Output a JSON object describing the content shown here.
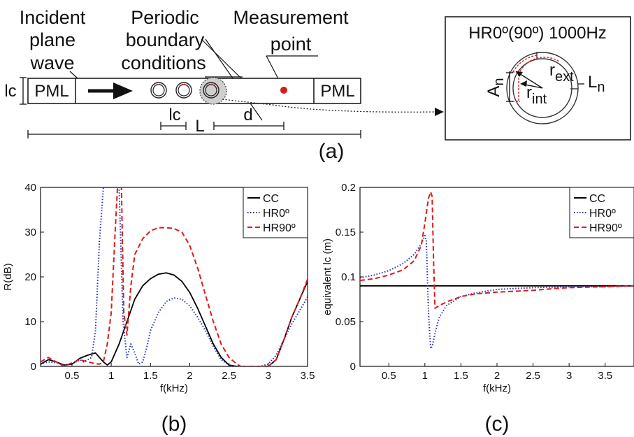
{
  "schematic": {
    "incident_wave": [
      "Incident",
      "plane",
      "wave"
    ],
    "periodic_bc": [
      "Periodic",
      "boundary",
      "conditions"
    ],
    "measurement": [
      "Measurement",
      "point"
    ],
    "pml_left": "PML",
    "pml_right": "PML",
    "lc_side": "lc",
    "lc_dim": "lc",
    "L": "L",
    "d": "d",
    "inset_title": "HR0º(90º) 1000Hz",
    "r_ext_base": "r",
    "r_ext_sub": "ext",
    "r_int_base": "r",
    "r_int_sub": "int",
    "A_base": "A",
    "A_sub": "n",
    "L_base": "L",
    "L_sub": "n",
    "panel_label": "(a)"
  },
  "chart_data": [
    {
      "type": "line",
      "panel_label": "(b)",
      "xlabel": "f(kHz)",
      "ylabel": "R(dB)",
      "xlim": [
        0.1,
        3.5
      ],
      "ylim": [
        0,
        40
      ],
      "xticks": [
        0.5,
        1,
        1.5,
        2,
        2.5,
        3,
        3.5
      ],
      "xtick_labels": [
        "0.5",
        "1",
        "1.5",
        "2",
        "2.5",
        "3",
        "3.5"
      ],
      "yticks": [
        0,
        10,
        20,
        30,
        40
      ],
      "ytick_labels": [
        "0",
        "10",
        "20",
        "30",
        "40"
      ],
      "legend_position": "top-right",
      "series": [
        {
          "name": "CC",
          "color": "#000000",
          "dash": "solid",
          "x": [
            0.1,
            0.2,
            0.3,
            0.4,
            0.5,
            0.6,
            0.7,
            0.8,
            0.9,
            0.95,
            1.0,
            1.1,
            1.2,
            1.3,
            1.4,
            1.5,
            1.6,
            1.7,
            1.8,
            1.9,
            2.0,
            2.1,
            2.2,
            2.3,
            2.4,
            2.5,
            2.6,
            2.7,
            2.8,
            2.9,
            3.0,
            3.1,
            3.2,
            3.3,
            3.4,
            3.5
          ],
          "y": [
            0.5,
            1.5,
            1.0,
            0.3,
            0.5,
            1.8,
            2.5,
            3.0,
            1.0,
            0.3,
            1.0,
            5.0,
            10.0,
            15.0,
            18.0,
            19.6,
            20.6,
            20.9,
            20.4,
            19.0,
            16.5,
            13.0,
            9.0,
            5.0,
            2.0,
            0.3,
            0.0,
            0.0,
            0.0,
            0.0,
            0.0,
            1.5,
            6.0,
            11.0,
            15.0,
            19.0
          ]
        },
        {
          "name": "HR0º",
          "color": "#1f2fb8",
          "dash": "dotted",
          "x": [
            0.1,
            0.2,
            0.3,
            0.4,
            0.5,
            0.6,
            0.65,
            0.75,
            0.8,
            0.85,
            0.9,
            0.95,
            0.97,
            1.0,
            1.1,
            1.15,
            1.2,
            1.25,
            1.3,
            1.35,
            1.4,
            1.45,
            1.5,
            1.6,
            1.7,
            1.8,
            1.9,
            2.0,
            2.1,
            2.2,
            2.3,
            2.4,
            2.5,
            2.6,
            2.7,
            2.8,
            2.9,
            3.0,
            3.1,
            3.2,
            3.3,
            3.4,
            3.5
          ],
          "y": [
            0.5,
            1.0,
            0.8,
            0.3,
            0.5,
            1.5,
            1.0,
            2.0,
            8.0,
            28.0,
            40.0,
            40.0,
            40.0,
            40.0,
            40.0,
            10.0,
            2.0,
            5.0,
            3.0,
            0.5,
            1.0,
            4.0,
            8.0,
            12.0,
            14.5,
            15.3,
            15.0,
            13.5,
            11.0,
            8.0,
            4.5,
            1.5,
            0.2,
            0.0,
            0.0,
            0.0,
            0.0,
            0.5,
            2.5,
            6.0,
            9.5,
            12.5,
            15.5
          ]
        },
        {
          "name": "HR90º",
          "color": "#dd1a1a",
          "dash": "dashed",
          "x": [
            0.1,
            0.2,
            0.3,
            0.4,
            0.5,
            0.6,
            0.7,
            0.8,
            0.85,
            0.9,
            0.95,
            1.0,
            1.05,
            1.08,
            1.1,
            1.13,
            1.16,
            1.2,
            1.25,
            1.3,
            1.4,
            1.5,
            1.6,
            1.7,
            1.8,
            1.9,
            2.0,
            2.1,
            2.2,
            2.3,
            2.4,
            2.5,
            2.6,
            2.65,
            2.7,
            2.8,
            2.9,
            3.0,
            3.1,
            3.2,
            3.3,
            3.4,
            3.5
          ],
          "y": [
            1.0,
            2.0,
            1.0,
            0.0,
            0.8,
            1.5,
            1.0,
            0.6,
            0.5,
            1.0,
            5.0,
            12.0,
            30.0,
            40.0,
            40.0,
            40.0,
            12.0,
            7.0,
            18.0,
            25.0,
            28.5,
            30.3,
            31.0,
            31.0,
            30.8,
            30.0,
            27.0,
            22.0,
            16.0,
            10.0,
            5.0,
            2.0,
            0.5,
            0.0,
            0.0,
            0.0,
            0.0,
            0.0,
            1.5,
            6.0,
            11.0,
            15.0,
            19.5
          ]
        }
      ]
    },
    {
      "type": "line",
      "panel_label": "(c)",
      "xlabel": "f(kHz)",
      "ylabel": "equivalent lc (m)",
      "xlim": [
        0.1,
        3.9
      ],
      "ylim": [
        0,
        0.2
      ],
      "xticks": [
        0.5,
        1,
        1.5,
        2,
        2.5,
        3,
        3.5
      ],
      "xtick_labels": [
        "0.5",
        "1",
        "1.5",
        "2",
        "2.5",
        "3",
        "3.5"
      ],
      "yticks": [
        0,
        0.05,
        0.1,
        0.15,
        0.2
      ],
      "ytick_labels": [
        "0",
        "0.05",
        "0.1",
        "0.15",
        "0.2"
      ],
      "legend_position": "top-right",
      "series": [
        {
          "name": "CC",
          "color": "#000000",
          "dash": "solid",
          "x": [
            0.1,
            3.9
          ],
          "y": [
            0.09,
            0.09
          ]
        },
        {
          "name": "HR0º",
          "color": "#1f2fb8",
          "dash": "dotted",
          "x": [
            0.1,
            0.3,
            0.5,
            0.7,
            0.85,
            0.95,
            1.0,
            1.02,
            1.05,
            1.08,
            1.1,
            1.15,
            1.2,
            1.3,
            1.5,
            1.7,
            2.0,
            2.5,
            3.0,
            3.5,
            3.9
          ],
          "y": [
            0.099,
            0.102,
            0.107,
            0.115,
            0.125,
            0.137,
            0.146,
            0.14,
            0.06,
            0.02,
            0.022,
            0.04,
            0.055,
            0.068,
            0.078,
            0.082,
            0.086,
            0.088,
            0.089,
            0.089,
            0.09
          ]
        },
        {
          "name": "HR90º",
          "color": "#dd1a1a",
          "dash": "dashed",
          "x": [
            0.1,
            0.3,
            0.5,
            0.7,
            0.85,
            0.95,
            1.0,
            1.05,
            1.08,
            1.1,
            1.12,
            1.14,
            1.2,
            1.3,
            1.5,
            1.7,
            2.0,
            2.5,
            2.8,
            3.0,
            3.5,
            3.9
          ],
          "y": [
            0.096,
            0.098,
            0.102,
            0.108,
            0.118,
            0.135,
            0.16,
            0.188,
            0.195,
            0.19,
            0.12,
            0.065,
            0.068,
            0.072,
            0.078,
            0.081,
            0.083,
            0.085,
            0.087,
            0.088,
            0.089,
            0.09
          ]
        }
      ]
    }
  ]
}
